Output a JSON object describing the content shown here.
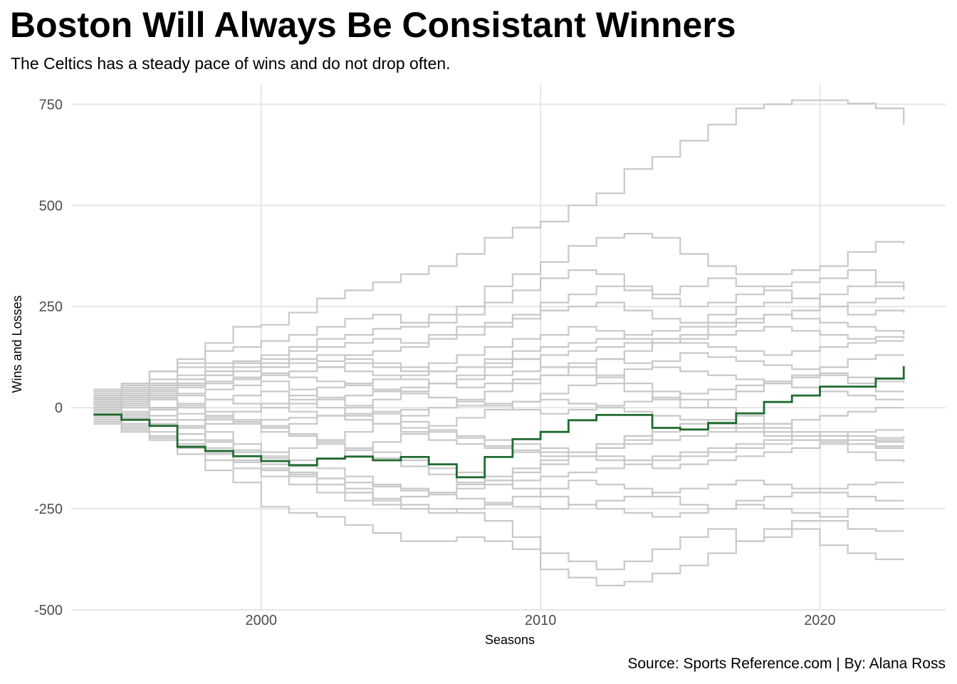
{
  "chart_data": {
    "type": "line",
    "step": true,
    "title": "Boston Will Always Be Consistant Winners",
    "subtitle": "The Celtics has a steady pace of wins and do not drop often.",
    "caption": "Source: Sports Reference.com | By: Alana Ross",
    "xlabel": "Seasons",
    "ylabel": "Wins and Losses",
    "xlim": [
      1993.2,
      2024.5
    ],
    "ylim": [
      -500,
      800
    ],
    "x_ticks": [
      {
        "label": "2000",
        "value": 2000
      },
      {
        "label": "2010",
        "value": 2010
      },
      {
        "label": "2020",
        "value": 2020
      }
    ],
    "y_ticks": [
      {
        "label": "750",
        "value": 750
      },
      {
        "label": "500",
        "value": 500
      },
      {
        "label": "250",
        "value": 250
      },
      {
        "label": "0",
        "value": 0
      },
      {
        "label": "-250",
        "value": -250
      },
      {
        "label": "-500",
        "value": -500
      }
    ],
    "grid": true,
    "legend": "none",
    "colors": {
      "highlight": "#1f6b2e",
      "background_series": "#c8c8c8",
      "grid": "#e6e6e6"
    },
    "x": [
      1994,
      1995,
      1996,
      1997,
      1998,
      1999,
      2000,
      2001,
      2002,
      2003,
      2004,
      2005,
      2006,
      2007,
      2008,
      2009,
      2010,
      2011,
      2012,
      2013,
      2014,
      2015,
      2016,
      2017,
      2018,
      2019,
      2020,
      2021,
      2022,
      2023
    ],
    "highlight_series": {
      "values": [
        -17,
        -30,
        -45,
        -97,
        -107,
        -120,
        -132,
        -142,
        -126,
        -121,
        -130,
        -122,
        -140,
        -172,
        -122,
        -78,
        -60,
        -31,
        -18,
        -18,
        -50,
        -54,
        -38,
        -14,
        14,
        30,
        52,
        52,
        72,
        103
      ]
    },
    "background_series": [
      {
        "values": [
          5,
          40,
          70,
          120,
          160,
          200,
          205,
          235,
          270,
          290,
          310,
          330,
          350,
          380,
          420,
          445,
          460,
          500,
          530,
          590,
          620,
          660,
          700,
          740,
          750,
          760,
          760,
          752,
          740,
          700
        ]
      },
      {
        "values": [
          20,
          55,
          90,
          110,
          140,
          150,
          165,
          180,
          200,
          220,
          230,
          210,
          230,
          250,
          300,
          330,
          360,
          400,
          420,
          430,
          420,
          380,
          350,
          330,
          330,
          340,
          350,
          385,
          410,
          405
        ]
      },
      {
        "values": [
          15,
          30,
          55,
          80,
          100,
          110,
          130,
          150,
          170,
          180,
          195,
          200,
          210,
          230,
          260,
          290,
          320,
          340,
          330,
          300,
          270,
          250,
          260,
          280,
          300,
          310,
          320,
          340,
          300,
          295
        ]
      },
      {
        "values": [
          -10,
          10,
          30,
          60,
          80,
          100,
          120,
          140,
          150,
          160,
          170,
          160,
          180,
          200,
          210,
          220,
          240,
          250,
          260,
          240,
          220,
          210,
          230,
          250,
          260,
          270,
          280,
          300,
          310,
          290
        ]
      },
      {
        "values": [
          -5,
          20,
          50,
          70,
          90,
          110,
          100,
          120,
          115,
          130,
          140,
          150,
          170,
          180,
          200,
          230,
          260,
          280,
          300,
          290,
          280,
          300,
          320,
          300,
          290,
          270,
          250,
          230,
          240,
          235
        ]
      },
      {
        "values": [
          10,
          25,
          35,
          50,
          60,
          70,
          80,
          90,
          100,
          110,
          100,
          90,
          110,
          130,
          150,
          170,
          180,
          200,
          190,
          170,
          160,
          180,
          200,
          210,
          230,
          240,
          250,
          260,
          270,
          275
        ]
      },
      {
        "values": [
          30,
          60,
          90,
          100,
          110,
          115,
          110,
          120,
          130,
          120,
          110,
          100,
          90,
          100,
          120,
          140,
          150,
          160,
          170,
          180,
          190,
          200,
          210,
          220,
          230,
          220,
          210,
          200,
          190,
          180
        ]
      },
      {
        "values": [
          25,
          50,
          60,
          70,
          80,
          90,
          100,
          110,
          100,
          90,
          80,
          70,
          60,
          50,
          60,
          70,
          80,
          100,
          120,
          140,
          160,
          170,
          180,
          190,
          200,
          190,
          180,
          170,
          175,
          170
        ]
      },
      {
        "values": [
          0,
          -20,
          -40,
          -50,
          -30,
          -10,
          10,
          30,
          50,
          60,
          70,
          80,
          90,
          100,
          110,
          120,
          130,
          140,
          150,
          160,
          170,
          160,
          150,
          140,
          130,
          140,
          150,
          160,
          165,
          165
        ]
      },
      {
        "values": [
          35,
          45,
          20,
          0,
          -20,
          -40,
          -60,
          -40,
          -20,
          0,
          20,
          40,
          60,
          80,
          100,
          120,
          100,
          80,
          60,
          40,
          20,
          0,
          20,
          40,
          60,
          80,
          100,
          120,
          130,
          130
        ]
      },
      {
        "values": [
          -25,
          -40,
          -60,
          -80,
          -100,
          -110,
          -120,
          -100,
          -80,
          -60,
          -40,
          -20,
          0,
          20,
          40,
          60,
          80,
          100,
          80,
          60,
          40,
          20,
          0,
          -20,
          -40,
          -60,
          -70,
          -80,
          -85,
          -88
        ]
      },
      {
        "values": [
          -30,
          -50,
          -70,
          -90,
          -110,
          -130,
          -150,
          -170,
          -190,
          -210,
          -230,
          -220,
          -210,
          -200,
          -180,
          -160,
          -140,
          -120,
          -100,
          -80,
          -60,
          -40,
          -50,
          -60,
          -70,
          -80,
          -85,
          -90,
          -95,
          -95
        ]
      },
      {
        "values": [
          40,
          20,
          0,
          -30,
          -60,
          -90,
          -110,
          -130,
          -150,
          -170,
          -190,
          -200,
          -210,
          -190,
          -170,
          -150,
          -130,
          -110,
          -90,
          -70,
          -50,
          -40,
          -30,
          -40,
          -50,
          -60,
          -70,
          -80,
          -75,
          -70
        ]
      },
      {
        "values": [
          -40,
          -60,
          -80,
          -100,
          -130,
          -150,
          -170,
          -190,
          -210,
          -230,
          -240,
          -250,
          -260,
          -250,
          -240,
          -220,
          -200,
          -180,
          -190,
          -200,
          -220,
          -240,
          -250,
          -230,
          -220,
          -210,
          -200,
          -190,
          -185,
          -185
        ]
      },
      {
        "values": [
          -15,
          -45,
          -75,
          -115,
          -155,
          -185,
          -245,
          -260,
          -270,
          -290,
          -310,
          -330,
          -330,
          -320,
          -330,
          -350,
          -400,
          -420,
          -440,
          -430,
          -410,
          -390,
          -360,
          -330,
          -300,
          -280,
          -280,
          -300,
          -305,
          -305
        ]
      },
      {
        "values": [
          10,
          0,
          -20,
          -50,
          -80,
          -110,
          -140,
          -160,
          -175,
          -200,
          -225,
          -240,
          -250,
          -260,
          -280,
          -320,
          -360,
          -380,
          -400,
          -380,
          -350,
          -320,
          -300,
          -330,
          -320,
          -300,
          -340,
          -360,
          -375,
          -375
        ]
      },
      {
        "values": [
          45,
          35,
          20,
          5,
          -10,
          -30,
          -50,
          -70,
          -90,
          -100,
          -110,
          -130,
          -150,
          -160,
          -180,
          -200,
          -220,
          -240,
          -250,
          -260,
          -270,
          -260,
          -250,
          -240,
          -250,
          -260,
          -270,
          -250,
          -250,
          -250
        ]
      },
      {
        "values": [
          -35,
          -55,
          -75,
          -95,
          -115,
          -135,
          -155,
          -165,
          -175,
          -185,
          -195,
          -205,
          -215,
          -225,
          -235,
          -245,
          -250,
          -240,
          -230,
          -220,
          -210,
          -200,
          -190,
          -180,
          -190,
          -200,
          -210,
          -220,
          -230,
          -230
        ]
      },
      {
        "values": [
          5,
          15,
          25,
          35,
          45,
          55,
          65,
          45,
          25,
          5,
          -15,
          -35,
          -55,
          -75,
          -95,
          -105,
          -110,
          -120,
          -130,
          -140,
          -150,
          -140,
          -130,
          -120,
          -110,
          -100,
          -90,
          -110,
          -130,
          -135
        ]
      },
      {
        "values": [
          15,
          5,
          -5,
          -15,
          -25,
          -35,
          -45,
          -65,
          -85,
          -105,
          -125,
          -145,
          -165,
          -185,
          -190,
          -180,
          -170,
          -160,
          -150,
          -140,
          -130,
          -120,
          -110,
          -100,
          -90,
          -80,
          -70,
          -60,
          -55,
          -55
        ]
      },
      {
        "values": [
          -20,
          -10,
          0,
          10,
          20,
          30,
          40,
          20,
          0,
          -20,
          -40,
          -60,
          -80,
          -90,
          -100,
          -110,
          -120,
          -110,
          -100,
          -90,
          -80,
          -70,
          -60,
          -50,
          -40,
          -30,
          -20,
          -10,
          0,
          0
        ]
      },
      {
        "values": [
          25,
          35,
          45,
          55,
          65,
          75,
          85,
          75,
          65,
          55,
          45,
          35,
          25,
          15,
          5,
          -5,
          -15,
          -5,
          5,
          15,
          25,
          35,
          45,
          55,
          65,
          75,
          80,
          60,
          40,
          40
        ]
      },
      {
        "values": [
          -5,
          -25,
          -45,
          -65,
          -85,
          -105,
          -125,
          -145,
          -125,
          -105,
          -85,
          -65,
          -45,
          -25,
          -5,
          15,
          35,
          55,
          75,
          95,
          115,
          135,
          125,
          115,
          105,
          95,
          85,
          75,
          65,
          60
        ]
      },
      {
        "values": [
          0,
          -15,
          -30,
          -45,
          -40,
          -35,
          -30,
          -25,
          -20,
          -15,
          -10,
          -5,
          0,
          5,
          10,
          15,
          20,
          10,
          0,
          -10,
          -20,
          -30,
          -40,
          -50,
          -60,
          -70,
          -80,
          -90,
          -100,
          -100
        ]
      },
      {
        "values": [
          20,
          30,
          40,
          30,
          20,
          10,
          0,
          -10,
          -20,
          -30,
          -40,
          -50,
          -60,
          -70,
          -80,
          -90,
          -100,
          -110,
          -120,
          -130,
          -120,
          -110,
          -100,
          -90,
          -80,
          -70,
          -60,
          -70,
          -80,
          -80
        ]
      },
      {
        "values": [
          -10,
          -30,
          -40,
          -30,
          -20,
          -10,
          0,
          10,
          20,
          30,
          40,
          50,
          60,
          70,
          80,
          90,
          100,
          110,
          120,
          110,
          100,
          90,
          80,
          70,
          60,
          50,
          40,
          30,
          20,
          20
        ]
      }
    ]
  }
}
